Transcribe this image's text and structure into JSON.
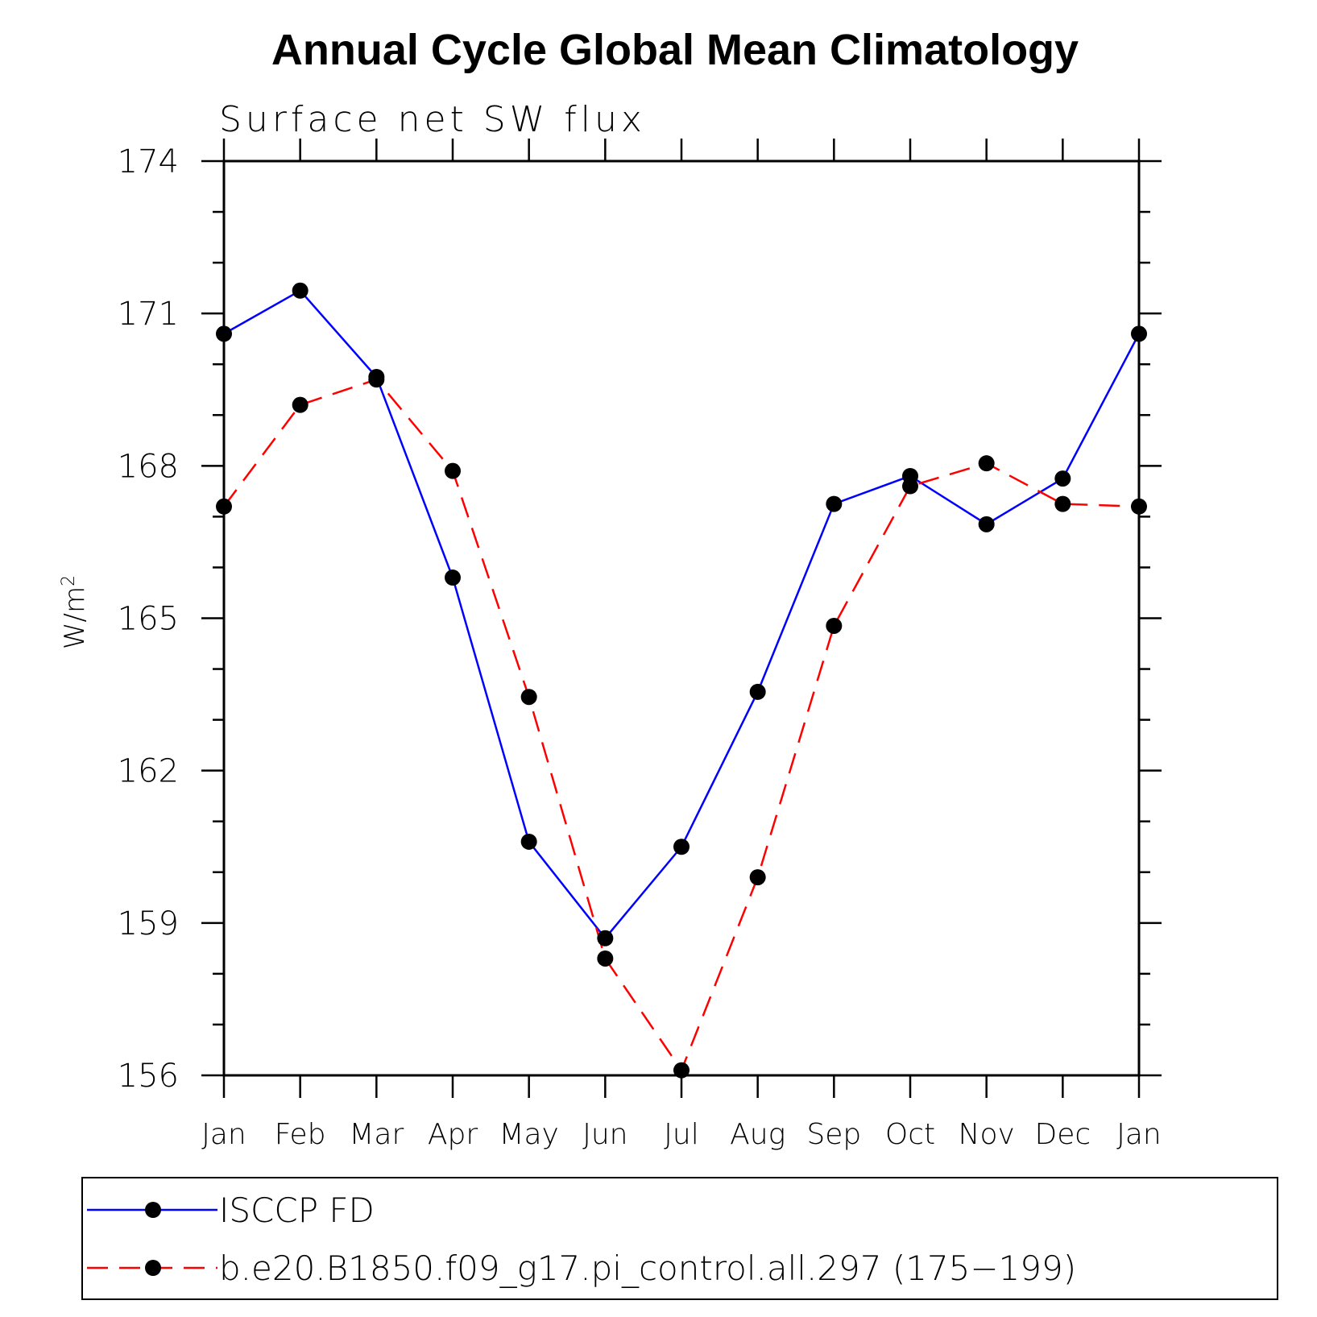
{
  "chart_data": {
    "type": "line",
    "title": "Annual Cycle Global Mean Climatology",
    "subtitle": "Surface net SW flux",
    "ylabel": "W/m",
    "ylabel_sup": "2",
    "categories": [
      "Jan",
      "Feb",
      "Mar",
      "Apr",
      "May",
      "Jun",
      "Jul",
      "Aug",
      "Sep",
      "Oct",
      "Nov",
      "Dec",
      "Jan"
    ],
    "ylim": [
      156,
      174
    ],
    "yticks": [
      "174",
      "171",
      "168",
      "165",
      "162",
      "159",
      "156"
    ],
    "ytick_values": [
      174,
      171,
      168,
      165,
      162,
      159,
      156
    ],
    "grid": false,
    "legend_position": "bottom",
    "series": [
      {
        "name": "ISCCP FD",
        "color": "#0000ff",
        "dash": "solid",
        "values": [
          170.6,
          171.45,
          169.75,
          165.8,
          160.6,
          158.7,
          160.5,
          163.55,
          167.25,
          167.8,
          166.85,
          167.75,
          170.6
        ]
      },
      {
        "name": "b.e20.B1850.f09_g17.pi_control.all.297 (175−199)",
        "color": "#ff0000",
        "dash": "dashed",
        "values": [
          167.2,
          169.2,
          169.7,
          167.9,
          163.45,
          158.3,
          156.1,
          159.9,
          164.85,
          167.6,
          168.05,
          167.25,
          167.2
        ]
      }
    ]
  }
}
